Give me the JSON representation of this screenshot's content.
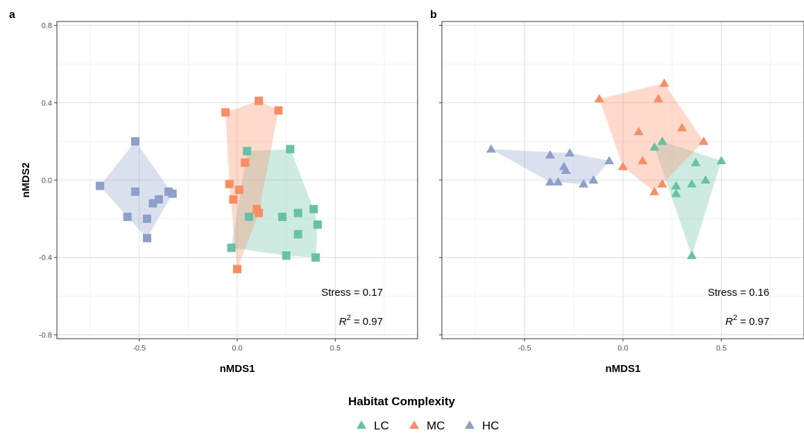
{
  "legend": {
    "title": "Habitat Complexity",
    "items": [
      {
        "label": "LC",
        "color": "#66c2a5"
      },
      {
        "label": "MC",
        "color": "#fc8d62"
      },
      {
        "label": "HC",
        "color": "#8da0cb"
      }
    ]
  },
  "chart_data": [
    {
      "type": "scatter",
      "panel_label": "a",
      "marker": "square",
      "xlabel": "nMDS1",
      "ylabel": "nMDS2",
      "xlim": [
        -0.92,
        0.92
      ],
      "ylim": [
        -0.82,
        0.82
      ],
      "xticks": [
        -0.5,
        0.0,
        0.5
      ],
      "xtick_labels": [
        "-0.5",
        "0.0",
        "0.5"
      ],
      "yticks": [
        -0.8,
        -0.4,
        0.0,
        0.4,
        0.8
      ],
      "ytick_labels": [
        "-0.8",
        "-0.4",
        "0.0",
        "0.4",
        "0.8"
      ],
      "show_y_tick_labels": true,
      "grid": true,
      "stress_label": "Stress = 0.17",
      "r2_label": "R",
      "r2_sup": "2",
      "r2_value": " = 0.97",
      "series": [
        {
          "name": "LC",
          "color": "#66c2a5",
          "points": [
            [
              0.05,
              0.15
            ],
            [
              0.27,
              0.16
            ],
            [
              -0.03,
              -0.35
            ],
            [
              0.06,
              -0.19
            ],
            [
              0.23,
              -0.19
            ],
            [
              0.31,
              -0.17
            ],
            [
              0.39,
              -0.15
            ],
            [
              0.41,
              -0.23
            ],
            [
              0.31,
              -0.28
            ],
            [
              0.25,
              -0.39
            ],
            [
              0.4,
              -0.4
            ]
          ]
        },
        {
          "name": "MC",
          "color": "#fc8d62",
          "points": [
            [
              -0.06,
              0.35
            ],
            [
              0.11,
              0.41
            ],
            [
              0.21,
              0.36
            ],
            [
              0.04,
              0.09
            ],
            [
              -0.04,
              -0.02
            ],
            [
              0.01,
              -0.05
            ],
            [
              -0.02,
              -0.1
            ],
            [
              0.1,
              -0.15
            ],
            [
              0.11,
              -0.17
            ],
            [
              0.0,
              -0.46
            ]
          ]
        },
        {
          "name": "HC",
          "color": "#8da0cb",
          "points": [
            [
              -0.52,
              0.2
            ],
            [
              -0.7,
              -0.03
            ],
            [
              -0.52,
              -0.06
            ],
            [
              -0.4,
              -0.1
            ],
            [
              -0.35,
              -0.06
            ],
            [
              -0.33,
              -0.07
            ],
            [
              -0.43,
              -0.12
            ],
            [
              -0.56,
              -0.19
            ],
            [
              -0.46,
              -0.2
            ],
            [
              -0.46,
              -0.3
            ]
          ]
        }
      ]
    },
    {
      "type": "scatter",
      "panel_label": "b",
      "marker": "triangle",
      "xlabel": "nMDS1",
      "ylabel": "",
      "xlim": [
        -0.92,
        0.92
      ],
      "ylim": [
        -0.82,
        0.82
      ],
      "xticks": [
        -0.5,
        0.0,
        0.5
      ],
      "xtick_labels": [
        "-0.5",
        "0.0",
        "0.5"
      ],
      "yticks": [
        -0.8,
        -0.4,
        0.0,
        0.4,
        0.8
      ],
      "ytick_labels": [],
      "show_y_tick_labels": false,
      "grid": true,
      "stress_label": "Stress = 0.16",
      "r2_label": "R",
      "r2_sup": "2",
      "r2_value": " = 0.97",
      "series": [
        {
          "name": "LC",
          "color": "#66c2a5",
          "points": [
            [
              0.2,
              0.2
            ],
            [
              0.16,
              0.17
            ],
            [
              0.37,
              0.09
            ],
            [
              0.5,
              0.1
            ],
            [
              0.42,
              0.0
            ],
            [
              0.35,
              -0.02
            ],
            [
              0.27,
              -0.03
            ],
            [
              0.27,
              -0.07
            ],
            [
              0.35,
              -0.39
            ]
          ]
        },
        {
          "name": "MC",
          "color": "#fc8d62",
          "points": [
            [
              -0.12,
              0.42
            ],
            [
              0.21,
              0.5
            ],
            [
              0.18,
              0.42
            ],
            [
              0.08,
              0.25
            ],
            [
              0.3,
              0.27
            ],
            [
              0.41,
              0.2
            ],
            [
              0.1,
              0.1
            ],
            [
              0.0,
              0.07
            ],
            [
              0.2,
              -0.02
            ],
            [
              0.16,
              -0.06
            ]
          ]
        },
        {
          "name": "HC",
          "color": "#8da0cb",
          "points": [
            [
              -0.67,
              0.16
            ],
            [
              -0.37,
              0.13
            ],
            [
              -0.27,
              0.14
            ],
            [
              -0.3,
              0.07
            ],
            [
              -0.29,
              0.05
            ],
            [
              -0.07,
              0.1
            ],
            [
              -0.37,
              -0.01
            ],
            [
              -0.33,
              -0.01
            ],
            [
              -0.2,
              -0.02
            ],
            [
              -0.15,
              0.0
            ]
          ]
        }
      ]
    }
  ]
}
